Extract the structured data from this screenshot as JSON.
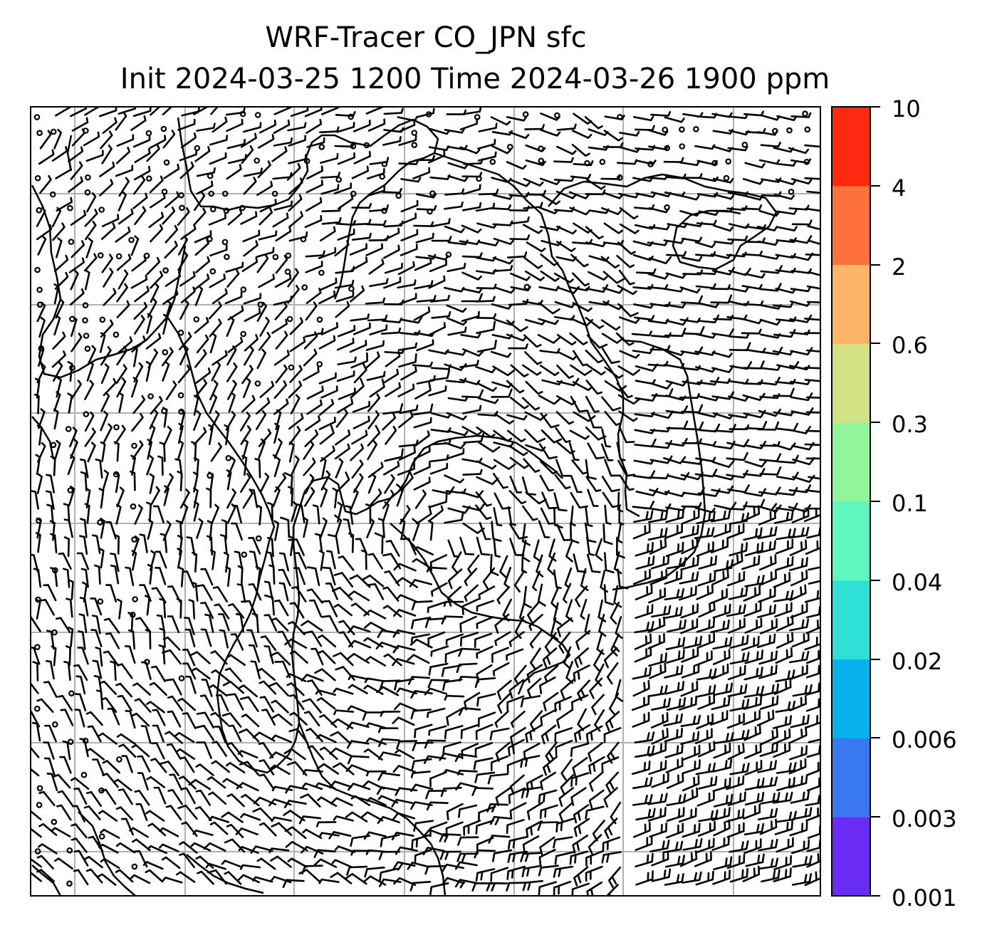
{
  "title": {
    "line1": "WRF-Tracer CO_JPN sfc",
    "line2": "Init 2024-03-25 1200 Time 2024-03-26 1900 ppm"
  },
  "colorbar": {
    "levels": [
      "0.001",
      "0.003",
      "0.006",
      "0.02",
      "0.04",
      "0.1",
      "0.3",
      "0.6",
      "2",
      "4",
      "10"
    ],
    "colors": [
      "#6a2cf5",
      "#3a78f0",
      "#08b2ea",
      "#2ee0d6",
      "#5ef7c0",
      "#92f59a",
      "#d2e184",
      "#feb466",
      "#ff713a",
      "#ff2810"
    ]
  },
  "map": {
    "background": "#ffffff",
    "gridline_color": "#b0b0b0",
    "coastline_color": "#000000",
    "wind_symbol": "wind-barb-icon"
  }
}
